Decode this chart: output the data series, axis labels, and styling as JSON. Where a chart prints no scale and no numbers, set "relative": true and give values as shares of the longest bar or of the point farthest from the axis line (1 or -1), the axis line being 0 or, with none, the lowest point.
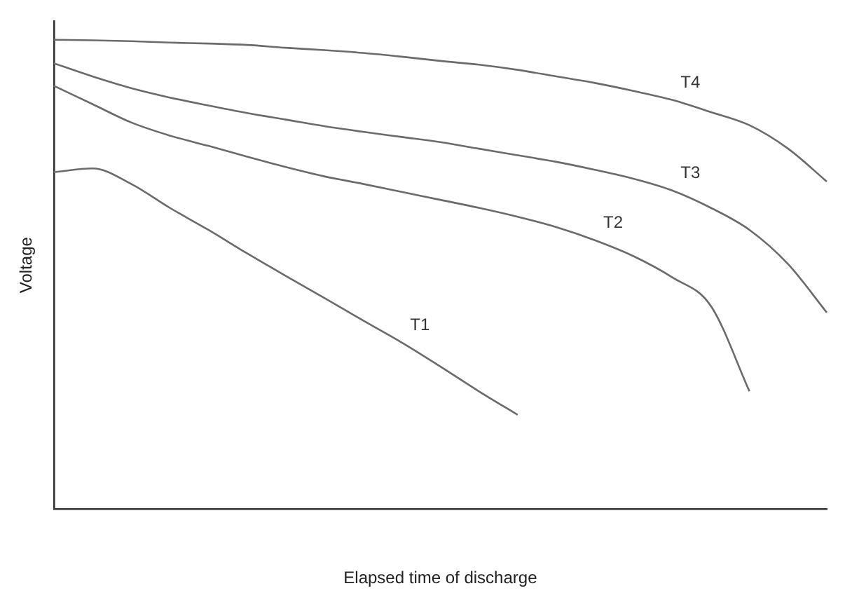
{
  "chart_data": {
    "type": "line",
    "relative": true,
    "xlabel": "Elapsed time of discharge",
    "ylabel": "Voltage",
    "marker": "none",
    "grid": false,
    "legend": false,
    "categories": [
      null,
      null,
      null,
      null,
      null,
      null,
      null,
      null,
      null,
      null,
      null,
      null,
      null,
      null,
      null,
      null,
      null,
      null,
      null,
      null,
      null
    ],
    "series": [
      {
        "name": "T1",
        "color": "#6b6b6b",
        "values": [
          0.718,
          0.726,
          0.693,
          0.642,
          0.595,
          0.545,
          0.497,
          0.45,
          0.402,
          0.355,
          0.304,
          0.251,
          0.201,
          null,
          null,
          null,
          null,
          null,
          null,
          null,
          null
        ]
      },
      {
        "name": "T2",
        "color": "#6b6b6b",
        "values": [
          0.902,
          0.863,
          0.824,
          0.796,
          0.774,
          0.751,
          0.729,
          0.709,
          0.693,
          0.676,
          0.659,
          0.642,
          0.623,
          0.601,
          0.573,
          0.539,
          0.494,
          0.433,
          0.251,
          null,
          null
        ]
      },
      {
        "name": "T3",
        "color": "#6b6b6b",
        "values": [
          0.95,
          0.922,
          0.897,
          0.877,
          0.86,
          0.844,
          0.83,
          0.816,
          0.804,
          0.793,
          0.782,
          0.768,
          0.754,
          0.74,
          0.723,
          0.704,
          0.679,
          0.642,
          0.595,
          0.522,
          0.419
        ]
      },
      {
        "name": "T4",
        "color": "#6b6b6b",
        "values": [
          1,
          0.999,
          0.997,
          0.994,
          0.992,
          0.989,
          0.983,
          0.978,
          0.972,
          0.964,
          0.955,
          0.947,
          0.936,
          0.922,
          0.908,
          0.891,
          0.872,
          0.846,
          0.818,
          0.768,
          0.698
        ]
      }
    ]
  }
}
